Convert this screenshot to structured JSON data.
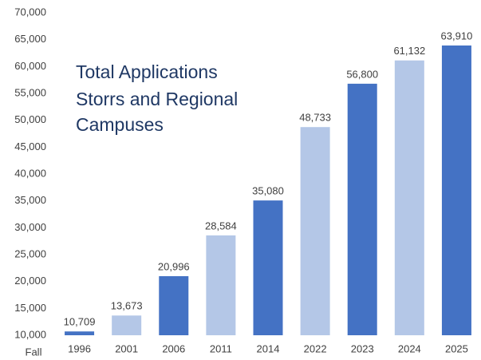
{
  "chart_data": {
    "type": "bar",
    "title": [
      "Total Applications",
      "Storrs and Regional",
      "Campuses"
    ],
    "x_axis_label": "Fall",
    "categories": [
      "1996",
      "2001",
      "2006",
      "2011",
      "2014",
      "2022",
      "2023",
      "2024",
      "2025"
    ],
    "values": [
      10709,
      13673,
      20996,
      28584,
      35080,
      48733,
      56800,
      61132,
      63910
    ],
    "value_labels": [
      "10,709",
      "13,673",
      "20,996",
      "28,584",
      "35,080",
      "48,733",
      "56,800",
      "61,132",
      "63,910"
    ],
    "colors": [
      "#4472c4",
      "#b4c7e7",
      "#4472c4",
      "#b4c7e7",
      "#4472c4",
      "#b4c7e7",
      "#4472c4",
      "#b4c7e7",
      "#4472c4"
    ],
    "ylim": [
      10000,
      70000
    ],
    "yticks": [
      {
        "value": 10000,
        "label": "10,000"
      },
      {
        "value": 15000,
        "label": "15,000"
      },
      {
        "value": 20000,
        "label": "20,000"
      },
      {
        "value": 25000,
        "label": "25,000"
      },
      {
        "value": 30000,
        "label": "30,000"
      },
      {
        "value": 35000,
        "label": "35,000"
      },
      {
        "value": 40000,
        "label": "40,000"
      },
      {
        "value": 45000,
        "label": "45,000"
      },
      {
        "value": 50000,
        "label": "50,000"
      },
      {
        "value": 55000,
        "label": "55,000"
      },
      {
        "value": 60000,
        "label": "60,000"
      },
      {
        "value": 65000,
        "label": "65,000"
      },
      {
        "value": 70000,
        "label": "70,000"
      }
    ],
    "grid": false
  }
}
